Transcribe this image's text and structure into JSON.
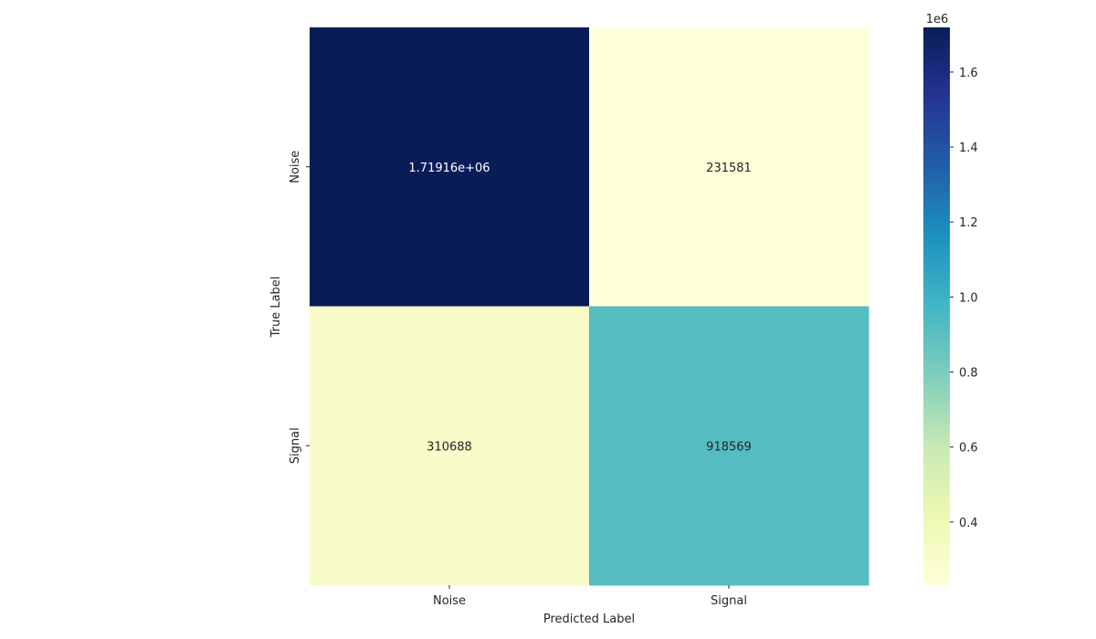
{
  "chart_data": {
    "type": "heatmap",
    "title": "",
    "xlabel": "Predicted Label",
    "ylabel": "True Label",
    "x_categories": [
      "Noise",
      "Signal"
    ],
    "y_categories": [
      "Noise",
      "Signal"
    ],
    "values": [
      [
        1719160,
        231581
      ],
      [
        310688,
        918569
      ]
    ],
    "annotations": [
      [
        "1.71916e+06",
        "231581"
      ],
      [
        "310688",
        "918569"
      ]
    ],
    "colormap": "YlGnBu",
    "colorbar": {
      "range": [
        231581,
        1719160
      ],
      "ticks": [
        0.4,
        0.6,
        0.8,
        1.0,
        1.2,
        1.4,
        1.6
      ],
      "tick_labels": [
        "0.4",
        "0.6",
        "0.8",
        "1.0",
        "1.2",
        "1.4",
        "1.6"
      ],
      "multiplier_label": "1e6",
      "scale": 1000000
    }
  }
}
